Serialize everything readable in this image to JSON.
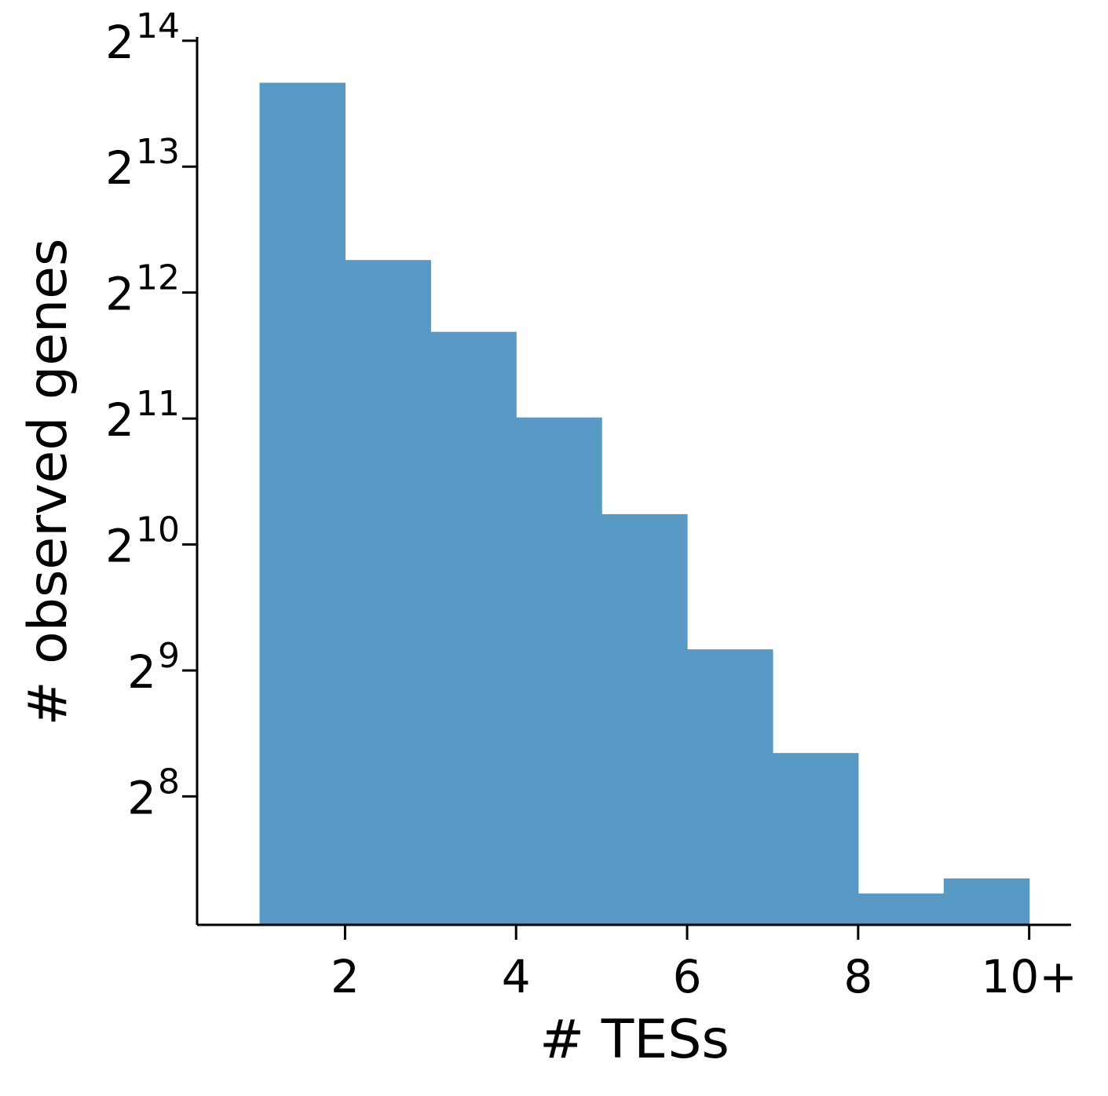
{
  "chart_data": {
    "type": "bar",
    "title": "",
    "xlabel": "# TESs",
    "ylabel": "# observed genes",
    "x_scale": "linear",
    "y_scale": "log2",
    "bins": [
      {
        "left": 1,
        "right": 2,
        "value": 13000
      },
      {
        "left": 2,
        "right": 3,
        "value": 4900
      },
      {
        "left": 3,
        "right": 4,
        "value": 3300
      },
      {
        "left": 4,
        "right": 5,
        "value": 2060
      },
      {
        "left": 5,
        "right": 6,
        "value": 1210
      },
      {
        "left": 6,
        "right": 7,
        "value": 575
      },
      {
        "left": 7,
        "right": 8,
        "value": 325
      },
      {
        "left": 8,
        "right": 9,
        "value": 150
      },
      {
        "left": 9,
        "right": 10,
        "value": 163
      }
    ],
    "xlim": [
      0.27,
      10.49
    ],
    "ylim_exponent": [
      6.98,
      14.03
    ],
    "x_ticks": [
      {
        "value": 2,
        "label": "2"
      },
      {
        "value": 4,
        "label": "4"
      },
      {
        "value": 6,
        "label": "6"
      },
      {
        "value": 8,
        "label": "8"
      },
      {
        "value": 10,
        "label": "10+"
      }
    ],
    "y_ticks": [
      {
        "exponent": 8,
        "base": "2",
        "exp_label": "8"
      },
      {
        "exponent": 9,
        "base": "2",
        "exp_label": "9"
      },
      {
        "exponent": 10,
        "base": "2",
        "exp_label": "10"
      },
      {
        "exponent": 11,
        "base": "2",
        "exp_label": "11"
      },
      {
        "exponent": 12,
        "base": "2",
        "exp_label": "12"
      },
      {
        "exponent": 13,
        "base": "2",
        "exp_label": "13"
      },
      {
        "exponent": 14,
        "base": "2",
        "exp_label": "14"
      }
    ],
    "grid": false,
    "legend": "none",
    "bar_color": "#5899c6",
    "axis_color": "#000000"
  }
}
